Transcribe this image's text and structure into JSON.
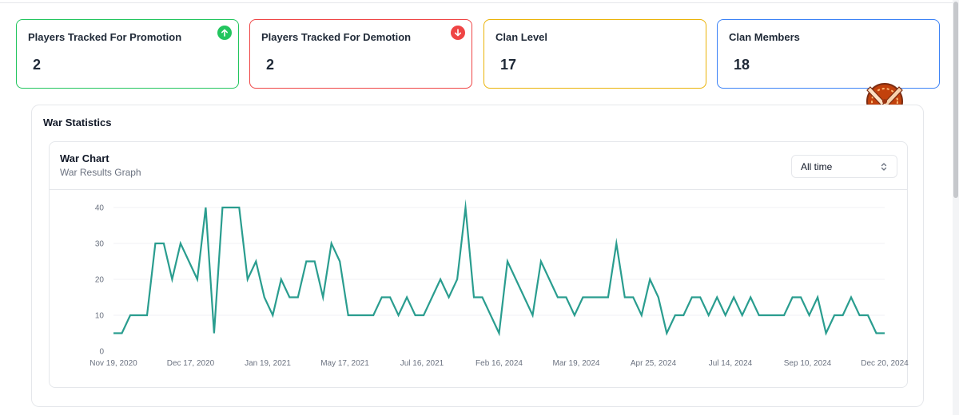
{
  "stats": {
    "promotion": {
      "label": "Players Tracked For Promotion",
      "value": "2",
      "trend_icon": "arrow-up-icon",
      "color": "#22c55e"
    },
    "demotion": {
      "label": "Players Tracked For Demotion",
      "value": "2",
      "trend_icon": "arrow-down-icon",
      "color": "#ef4444"
    },
    "clan_level": {
      "label": "Clan Level",
      "value": "17",
      "color": "#eab308"
    },
    "clan_members": {
      "label": "Clan Members",
      "value": "18",
      "color": "#3b82f6"
    }
  },
  "clan_badge_icon": "crossed-swords-badge-icon",
  "war_section": {
    "title": "War Statistics",
    "chart_card": {
      "title": "War Chart",
      "subtitle": "War Results Graph",
      "range_select": {
        "value": "All time",
        "icon": "chevron-up-down-icon"
      }
    }
  },
  "chart_data": {
    "type": "line",
    "color": "#2a9d8f",
    "grid": "horizontal",
    "ylim": [
      0,
      40
    ],
    "y_ticks": [
      0,
      10,
      20,
      30,
      40
    ],
    "x_tick_labels": [
      "Nov 19, 2020",
      "Dec 17, 2020",
      "Jan 19, 2021",
      "May 17, 2021",
      "Jul 16, 2021",
      "Feb 16, 2024",
      "Mar 19, 2024",
      "Apr 25, 2024",
      "Jul 14, 2024",
      "Sep 10, 2024",
      "Dec 20, 2024"
    ],
    "values": [
      5,
      5,
      10,
      10,
      10,
      30,
      30,
      20,
      30,
      25,
      20,
      40,
      5,
      40,
      40,
      40,
      20,
      25,
      15,
      10,
      20,
      15,
      15,
      25,
      25,
      15,
      30,
      25,
      10,
      10,
      10,
      10,
      15,
      15,
      10,
      15,
      10,
      10,
      15,
      20,
      15,
      20,
      40,
      15,
      15,
      10,
      5,
      25,
      20,
      15,
      10,
      25,
      20,
      15,
      15,
      10,
      15,
      15,
      15,
      15,
      30,
      15,
      15,
      10,
      20,
      15,
      5,
      10,
      10,
      15,
      15,
      10,
      15,
      10,
      15,
      10,
      15,
      10,
      10,
      10,
      10,
      15,
      15,
      10,
      15,
      5,
      10,
      10,
      15,
      10,
      10,
      5,
      5
    ]
  }
}
